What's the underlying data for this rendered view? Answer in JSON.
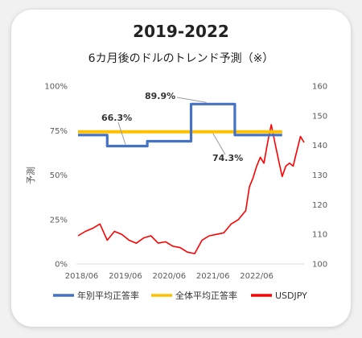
{
  "title": "2019-2022",
  "subtitle": "6カ月後のドルのトレンド予測（※）",
  "chart_data": {
    "type": "line",
    "title": "2019-2022",
    "subtitle": "6カ月後のドルのトレンド予測（※）",
    "ylabel": "予測",
    "x_ticks": [
      "2018/06",
      "2019/06",
      "2020/06",
      "2021/06",
      "2022/06"
    ],
    "y_left": {
      "ticks": [
        "0%",
        "25%",
        "50%",
        "75%",
        "100%"
      ],
      "range": [
        0,
        100
      ]
    },
    "y_right": {
      "ticks": [
        "100",
        "110",
        "120",
        "130",
        "140",
        "150",
        "160"
      ],
      "range": [
        100,
        160
      ]
    },
    "x_range": [
      "2018/05",
      "2023/07"
    ],
    "grid": false,
    "legend_position": "bottom",
    "series": [
      {
        "name": "年別平均正答率",
        "axis": "left",
        "color": "#4472c4",
        "x": [
          "2018/05",
          "2019/01",
          "2019/01",
          "2019/12",
          "2019/12",
          "2020/12",
          "2020/12",
          "2021/12",
          "2021/12",
          "2023/01"
        ],
        "values": [
          72.5,
          72.5,
          66.3,
          66.3,
          69.0,
          69.0,
          89.9,
          89.9,
          72.5,
          72.5
        ]
      },
      {
        "name": "全体平均正答率",
        "axis": "left",
        "color": "#ffc000",
        "x": [
          "2018/05",
          "2023/01"
        ],
        "values": [
          74.3,
          74.3
        ]
      },
      {
        "name": "USDJPY",
        "axis": "right",
        "color": "#ff0000",
        "x": [
          "2018/05",
          "2018/07",
          "2018/09",
          "2018/11",
          "2019/01",
          "2019/03",
          "2019/05",
          "2019/07",
          "2019/09",
          "2019/11",
          "2020/01",
          "2020/03",
          "2020/05",
          "2020/07",
          "2020/09",
          "2020/11",
          "2021/01",
          "2021/03",
          "2021/05",
          "2021/07",
          "2021/09",
          "2021/11",
          "2022/01",
          "2022/03",
          "2022/04",
          "2022/05",
          "2022/06",
          "2022/07",
          "2022/08",
          "2022/09",
          "2022/10",
          "2022/11",
          "2022/12",
          "2023/01",
          "2023/02",
          "2023/03",
          "2023/04",
          "2023/05",
          "2023/06",
          "2023/07"
        ],
        "values": [
          109.5,
          111,
          112,
          113.5,
          108,
          111,
          110,
          108,
          107,
          108.8,
          109.5,
          107,
          107.5,
          106,
          105.5,
          104,
          103.5,
          108,
          109.5,
          110,
          110.5,
          113.5,
          115,
          118,
          126,
          129,
          133,
          136,
          134,
          141,
          147,
          141,
          135,
          129.5,
          133,
          134,
          133,
          138,
          143,
          141
        ]
      }
    ],
    "annotations": [
      "66.3%",
      "89.9%",
      "74.3%"
    ]
  }
}
